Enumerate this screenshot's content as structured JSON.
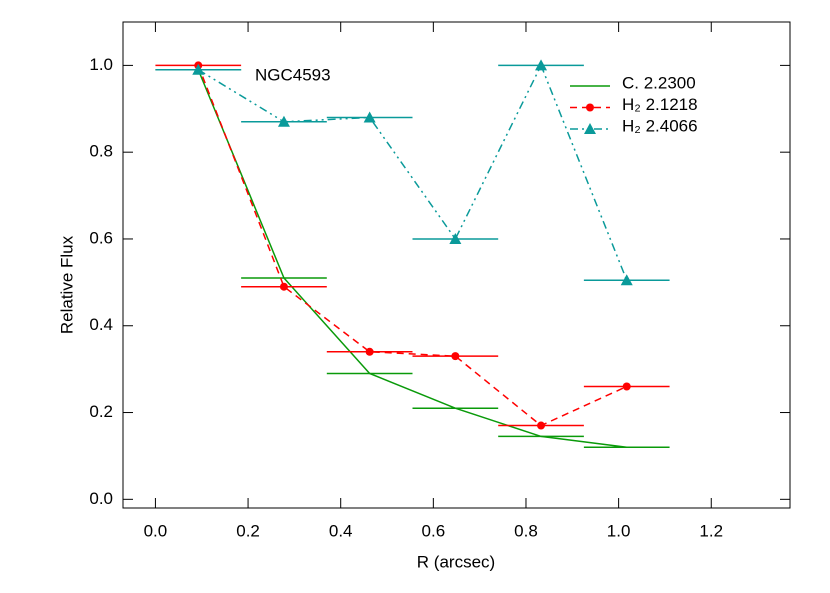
{
  "chart_data": {
    "type": "line",
    "annotation": "NGC4593",
    "xlabel": "R (arcsec)",
    "ylabel": "Relative Flux",
    "xlim": [
      -0.07,
      1.37
    ],
    "ylim": [
      -0.02,
      1.1
    ],
    "xticks": [
      {
        "value": 0,
        "label": "0.0"
      },
      0.2,
      0.4,
      0.6,
      0.8,
      {
        "value": 1,
        "label": "1.0"
      },
      1.2
    ],
    "yticks": [
      {
        "value": 0,
        "label": "0.0"
      },
      0.2,
      0.4,
      0.6,
      0.8,
      {
        "value": 1,
        "label": "1.0"
      }
    ],
    "legend": "upper right",
    "x": [
      0.0925,
      0.2775,
      0.4625,
      0.6475,
      0.8325,
      1.0175
    ],
    "xerr": [
      0.0925,
      0.0925,
      0.0925,
      0.0925,
      0.0925,
      0.0925
    ],
    "series": [
      {
        "name": "C. 2.2300",
        "color": "#0a9a0a",
        "linestyle": "solid",
        "marker": "none",
        "values": [
          0.99,
          0.51,
          0.29,
          0.21,
          0.145,
          0.12
        ]
      },
      {
        "name": "H₂ 2.1218",
        "color": "#ff0000",
        "linestyle": "dashed",
        "marker": "circle",
        "values": [
          1.0,
          0.49,
          0.34,
          0.33,
          0.17,
          0.26
        ]
      },
      {
        "name": "H₂ 2.4066",
        "color": "#0a9a9a",
        "linestyle": "dashdotdot",
        "marker": "triangle",
        "values": [
          0.99,
          0.87,
          0.88,
          0.6,
          1.0,
          0.505
        ]
      }
    ]
  }
}
